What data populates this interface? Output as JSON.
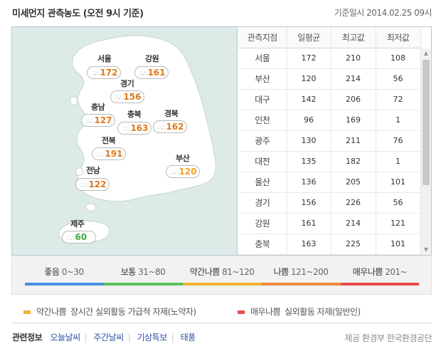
{
  "header": {
    "title": "미세먼지 관측농도 (오전 9시 기준)",
    "timestamp": "기준일시 2014.02.25 09시"
  },
  "map": {
    "regions": [
      {
        "name": "서울",
        "value": "172",
        "level": "bad"
      },
      {
        "name": "강원",
        "value": "161",
        "level": "bad"
      },
      {
        "name": "경기",
        "value": "156",
        "level": "bad"
      },
      {
        "name": "충남",
        "value": "127",
        "level": "bad"
      },
      {
        "name": "충북",
        "value": "163",
        "level": "bad"
      },
      {
        "name": "경북",
        "value": "162",
        "level": "bad"
      },
      {
        "name": "전북",
        "value": "191",
        "level": "bad"
      },
      {
        "name": "부산",
        "value": "120",
        "level": "mod"
      },
      {
        "name": "전남",
        "value": "122",
        "level": "bad"
      },
      {
        "name": "제주",
        "value": "60",
        "level": "good"
      }
    ],
    "colors": {
      "land": "#ffffff",
      "sea": "#dceae8",
      "border": "#c9d3d6"
    }
  },
  "table": {
    "headers": [
      "관측지점",
      "일평균",
      "최고값",
      "최저값"
    ],
    "rows": [
      [
        "서울",
        "172",
        "210",
        "108"
      ],
      [
        "부산",
        "120",
        "214",
        "56"
      ],
      [
        "대구",
        "142",
        "206",
        "72"
      ],
      [
        "인천",
        "96",
        "169",
        "1"
      ],
      [
        "광주",
        "130",
        "211",
        "76"
      ],
      [
        "대전",
        "135",
        "182",
        "1"
      ],
      [
        "울산",
        "136",
        "205",
        "101"
      ],
      [
        "경기",
        "156",
        "226",
        "56"
      ],
      [
        "강원",
        "161",
        "214",
        "121"
      ],
      [
        "충북",
        "163",
        "225",
        "101"
      ]
    ]
  },
  "legend": [
    {
      "label": "좋음",
      "range": "0~30",
      "color": "#4a90e2"
    },
    {
      "label": "보통",
      "range": "31~80",
      "color": "#5cc15c"
    },
    {
      "label": "약간나쁨",
      "range": "81~120",
      "color": "#f5b132"
    },
    {
      "label": "나쁨",
      "range": "121~200",
      "color": "#f08a3e"
    },
    {
      "label": "매우나쁨",
      "range": "201~",
      "color": "#e84e4e"
    }
  ],
  "notes": [
    {
      "label": "약간나쁨",
      "text": "장시간 실외활동 가급적 자제(노약자)",
      "color": "#f5b132"
    },
    {
      "label": "매우나쁨",
      "text": "실외활동 자제(일반인)",
      "color": "#e84e4e"
    }
  ],
  "footer": {
    "related_label": "관련정보",
    "links": [
      "오늘날씨",
      "주간날씨",
      "기상특보",
      "태풍"
    ],
    "source": "제공 환경부 한국환경공단"
  }
}
